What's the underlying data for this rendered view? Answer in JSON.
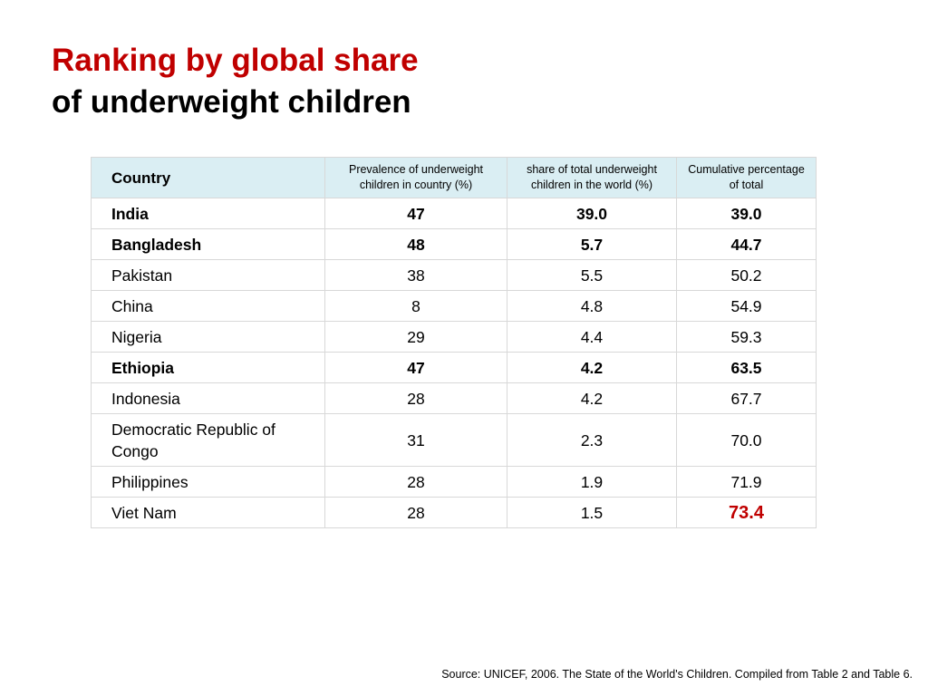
{
  "title": {
    "line1": "Ranking by global share",
    "line2": "of underweight children"
  },
  "table": {
    "headers": [
      "Country",
      "Prevalence of underweight children in country (%)",
      "share of total underweight children in the world (%)",
      "Cumulative percentage of total"
    ],
    "rows": [
      {
        "country": "India",
        "prevalence": "47",
        "share": "39.0",
        "cumulative": "39.0",
        "bold": true
      },
      {
        "country": "Bangladesh",
        "prevalence": "48",
        "share": "5.7",
        "cumulative": "44.7",
        "bold": true
      },
      {
        "country": "Pakistan",
        "prevalence": "38",
        "share": "5.5",
        "cumulative": "50.2",
        "bold": false
      },
      {
        "country": "China",
        "prevalence": "8",
        "share": "4.8",
        "cumulative": "54.9",
        "bold": false
      },
      {
        "country": "Nigeria",
        "prevalence": "29",
        "share": "4.4",
        "cumulative": "59.3",
        "bold": false
      },
      {
        "country": "Ethiopia",
        "prevalence": "47",
        "share": "4.2",
        "cumulative": "63.5",
        "bold": true
      },
      {
        "country": "Indonesia",
        "prevalence": "28",
        "share": "4.2",
        "cumulative": "67.7",
        "bold": false
      },
      {
        "country": "Democratic Republic of Congo",
        "prevalence": "31",
        "share": "2.3",
        "cumulative": "70.0",
        "bold": false
      },
      {
        "country": "Philippines",
        "prevalence": "28",
        "share": "1.9",
        "cumulative": "71.9",
        "bold": false
      },
      {
        "country": "Viet Nam",
        "prevalence": "28",
        "share": "1.5",
        "cumulative": "73.4",
        "bold": false,
        "highlight_cumulative": true
      }
    ]
  },
  "colors": {
    "title_accent": "#c00000",
    "header_background": "#daeef3",
    "highlight": "#c00000"
  },
  "source": "Source: UNICEF, 2006. The State of the World's Children. Compiled from Table 2 and Table 6."
}
